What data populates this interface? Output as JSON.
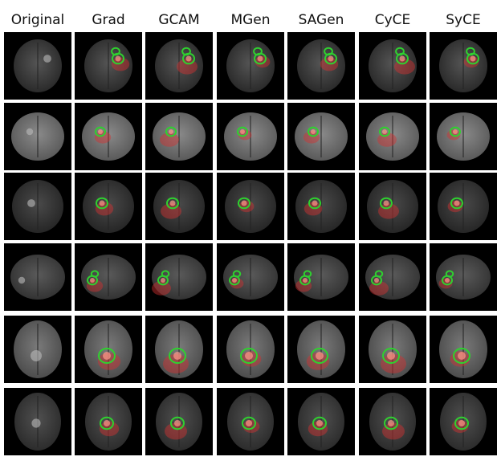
{
  "figure": {
    "headers": [
      "Original",
      "Grad",
      "GCAM",
      "MGen",
      "SAGen",
      "CyCE",
      "SyCE"
    ]
  }
}
